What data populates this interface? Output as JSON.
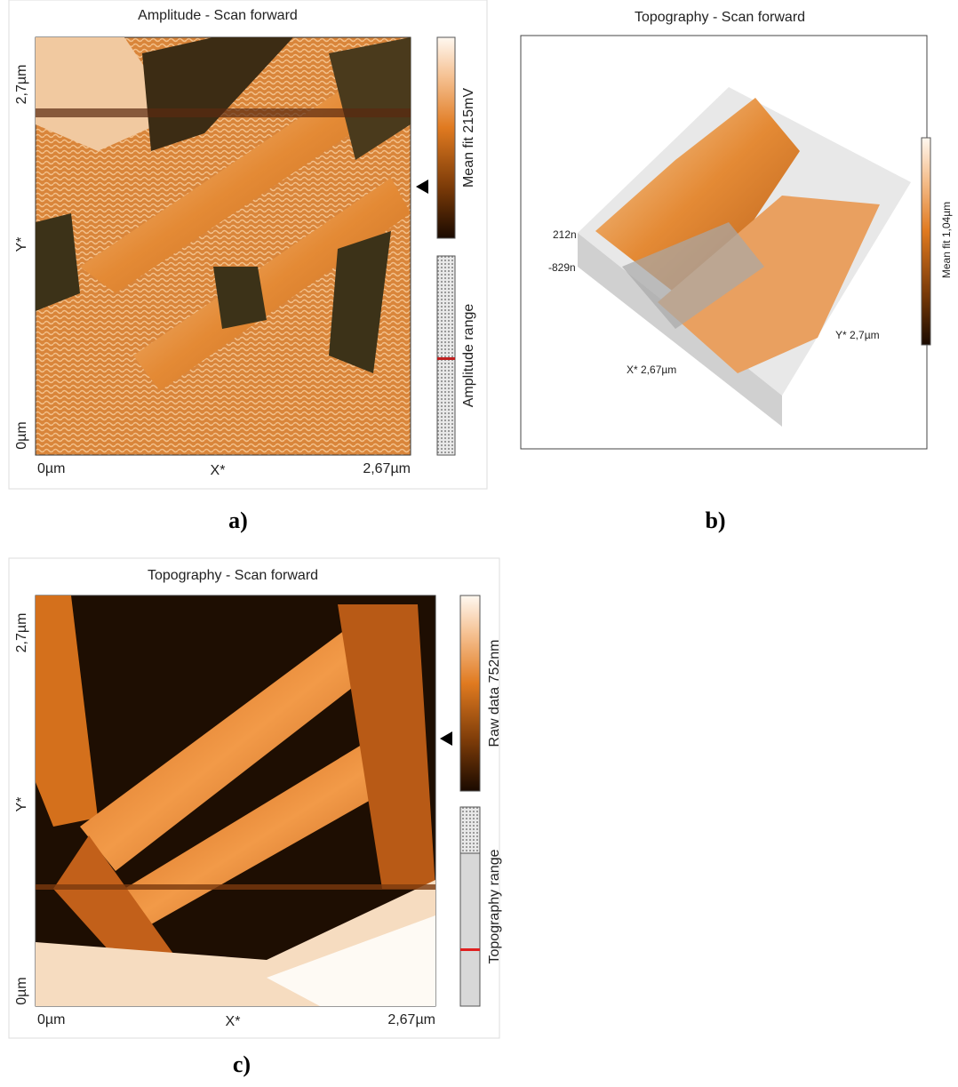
{
  "panels": [
    {
      "title": "Amplitude - Scan forward",
      "y_labels": [
        "2,7µm",
        "Y*",
        "0µm"
      ],
      "x_labels": [
        "0µm",
        "X*",
        "2,67µm"
      ],
      "colorbar_label": "Mean fit 215mV",
      "range_label": "Amplitude range",
      "caption": "a)"
    },
    {
      "title": "Topography - Scan forward",
      "z_labels": [
        "212n",
        "-829n"
      ],
      "x_label": "X* 2,67µm",
      "y_label": "Y* 2,7µm",
      "colorbar_label": "Mean fit 1,04µm",
      "caption": "b)"
    },
    {
      "title": "Topography - Scan forward",
      "y_labels": [
        "2,7µm",
        "Y*",
        "0µm"
      ],
      "x_labels": [
        "0µm",
        "X*",
        "2,67µm"
      ],
      "colorbar_label": "Raw data 752nm",
      "range_label": "Topography range",
      "caption": "c)"
    }
  ]
}
